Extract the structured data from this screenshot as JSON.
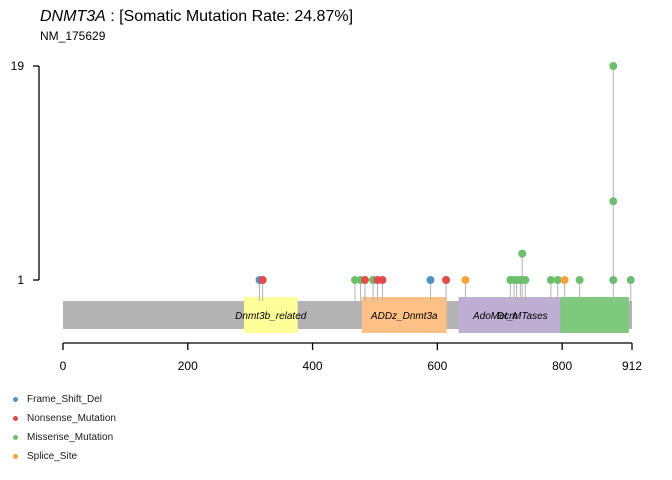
{
  "title": {
    "gene": "DNMT3A",
    "rest": ": [Somatic Mutation Rate: 24.87%]",
    "transcript": "NM_175629"
  },
  "colors": {
    "Frame_Shift_Del": "#4f93c6",
    "Nonsense_Mutation": "#e34a4a",
    "Missense_Mutation": "#6dbf6d",
    "Splice_Site": "#f5a23c",
    "protein_bar": "#b3b3b3",
    "lollipop_stem": "#b3b3b3"
  },
  "chart_data": {
    "type": "lollipop",
    "xlim": [
      0,
      912
    ],
    "x_ticks": [
      0,
      200,
      400,
      600,
      800,
      912
    ],
    "y_ticks": [
      1,
      19
    ],
    "y_scale": "sqrt-like (two labeled ticks only)",
    "protein_length": 912,
    "domains": [
      {
        "name": "Dnmt3b_related",
        "start": 290,
        "end": 376,
        "color": "#ffff99"
      },
      {
        "name": "ADDz_Dnmt3a",
        "start": 479,
        "end": 615,
        "color": "#fdc086"
      },
      {
        "name": "AdoMet_MTases",
        "start": 634,
        "end": 800,
        "color": "#beaed4"
      },
      {
        "name": "",
        "start": 797,
        "end": 907,
        "color": "#7fc97f"
      }
    ],
    "extra_label": {
      "text": "Dcm",
      "position": 712
    },
    "mutations": [
      {
        "pos": 315,
        "count": 1,
        "class": "Frame_Shift_Del"
      },
      {
        "pos": 320,
        "count": 1,
        "class": "Nonsense_Mutation"
      },
      {
        "pos": 468,
        "count": 1,
        "class": "Missense_Mutation"
      },
      {
        "pos": 477,
        "count": 1,
        "class": "Missense_Mutation"
      },
      {
        "pos": 484,
        "count": 1,
        "class": "Nonsense_Mutation"
      },
      {
        "pos": 497,
        "count": 1,
        "class": "Missense_Mutation"
      },
      {
        "pos": 504,
        "count": 1,
        "class": "Nonsense_Mutation"
      },
      {
        "pos": 512,
        "count": 1,
        "class": "Nonsense_Mutation"
      },
      {
        "pos": 589,
        "count": 1,
        "class": "Frame_Shift_Del"
      },
      {
        "pos": 614,
        "count": 1,
        "class": "Nonsense_Mutation"
      },
      {
        "pos": 645,
        "count": 1,
        "class": "Splice_Site"
      },
      {
        "pos": 717,
        "count": 1,
        "class": "Missense_Mutation"
      },
      {
        "pos": 723,
        "count": 1,
        "class": "Missense_Mutation"
      },
      {
        "pos": 727,
        "count": 1,
        "class": "Missense_Mutation"
      },
      {
        "pos": 733,
        "count": 1,
        "class": "Missense_Mutation"
      },
      {
        "pos": 736,
        "count": 2,
        "class": "Missense_Mutation"
      },
      {
        "pos": 741,
        "count": 1,
        "class": "Missense_Mutation"
      },
      {
        "pos": 782,
        "count": 1,
        "class": "Missense_Mutation"
      },
      {
        "pos": 793,
        "count": 1,
        "class": "Missense_Mutation"
      },
      {
        "pos": 804,
        "count": 1,
        "class": "Splice_Site"
      },
      {
        "pos": 828,
        "count": 1,
        "class": "Missense_Mutation"
      },
      {
        "pos": 882,
        "count": 19,
        "class": "Missense_Mutation"
      },
      {
        "pos": 910,
        "count": 1,
        "class": "Missense_Mutation"
      }
    ],
    "r882_stack_counts": [
      1,
      5,
      19
    ],
    "legend": [
      "Frame_Shift_Del",
      "Nonsense_Mutation",
      "Missense_Mutation",
      "Splice_Site"
    ]
  }
}
